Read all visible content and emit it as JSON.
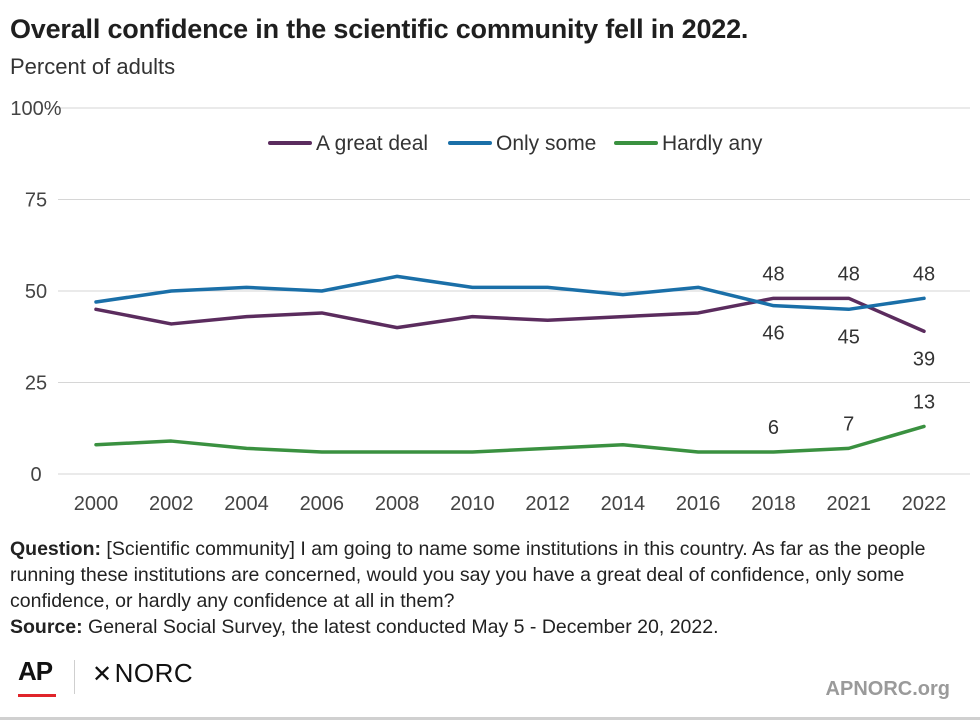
{
  "title": "Overall confidence in the scientific community fell in 2022.",
  "subtitle": "Percent of adults",
  "chart_data": {
    "type": "line",
    "title": "",
    "xlabel": "",
    "ylabel": "",
    "ylim": [
      0,
      100
    ],
    "y_ticks": [
      "0",
      "25",
      "50",
      "75",
      "100%"
    ],
    "categories": [
      "2000",
      "2002",
      "2004",
      "2006",
      "2008",
      "2010",
      "2012",
      "2014",
      "2016",
      "2018",
      "2021",
      "2022"
    ],
    "grid": "horizontal",
    "legend_position": "top-center",
    "series": [
      {
        "name": "A great deal",
        "color": "#5b2c5e",
        "values": [
          45,
          41,
          43,
          44,
          40,
          43,
          42,
          43,
          44,
          48,
          48,
          39
        ],
        "labels": [
          null,
          null,
          null,
          null,
          null,
          null,
          null,
          null,
          null,
          "48",
          "48",
          "39"
        ],
        "label_side": [
          "above",
          "above",
          "above",
          "above",
          "above",
          "above",
          "above",
          "above",
          "above",
          "above",
          "above",
          "below"
        ]
      },
      {
        "name": "Only some",
        "color": "#1a6fa8",
        "values": [
          47,
          50,
          51,
          50,
          54,
          51,
          51,
          49,
          51,
          46,
          45,
          48
        ],
        "labels": [
          null,
          null,
          null,
          null,
          null,
          null,
          null,
          null,
          null,
          "46",
          "45",
          "48"
        ],
        "label_side": [
          "below",
          "below",
          "below",
          "below",
          "below",
          "below",
          "below",
          "below",
          "below",
          "below",
          "below",
          "above"
        ]
      },
      {
        "name": "Hardly any",
        "color": "#3a9140",
        "values": [
          8,
          9,
          7,
          6,
          6,
          6,
          7,
          8,
          6,
          6,
          7,
          13
        ],
        "labels": [
          null,
          null,
          null,
          null,
          null,
          null,
          null,
          null,
          null,
          "6",
          "7",
          "13"
        ],
        "label_side": [
          "above",
          "above",
          "above",
          "above",
          "above",
          "above",
          "above",
          "above",
          "above",
          "above",
          "above",
          "above"
        ]
      }
    ]
  },
  "notes": {
    "question_label": "Question:",
    "question_text": "[Scientific community] I am going to name some institutions in this country. As far as the people running these institutions are concerned, would you say you have a great deal of confidence, only some confidence, or hardly any confidence at all in them?",
    "source_label": "Source:",
    "source_text": "General Social Survey, the latest conducted May 5 - December 20, 2022."
  },
  "footer": {
    "ap_logo": "AP",
    "norc_logo": "NORC",
    "site": "APNORC.org",
    "ap_accent_color": "#e0242a"
  }
}
